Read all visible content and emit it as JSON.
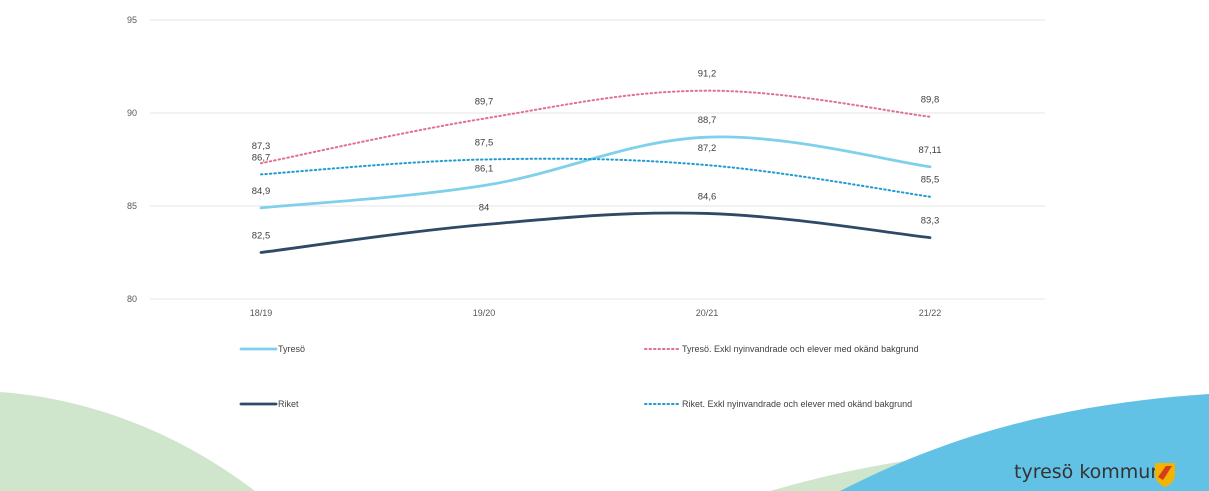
{
  "chart_data": {
    "type": "line",
    "title": "",
    "xlabel": "",
    "ylabel": "",
    "categories": [
      "18/19",
      "19/20",
      "20/21",
      "21/22"
    ],
    "ylim": [
      80,
      95
    ],
    "yticks": [
      80,
      85,
      90,
      95
    ],
    "grid": true,
    "legend_position": "bottom",
    "series": [
      {
        "name": "Tyresö",
        "values": [
          84.9,
          86.1,
          88.7,
          87.11
        ],
        "labels": [
          "84,9",
          "86,1",
          "88,7",
          "87,11"
        ],
        "color": "#7fd0ea",
        "style": "solid"
      },
      {
        "name": "Tyresö. Exkl nyinvandrade och elever med okänd bakgrund",
        "values": [
          87.3,
          89.7,
          91.2,
          89.8
        ],
        "labels": [
          "87,3",
          "89,7",
          "91,2",
          "89,8"
        ],
        "color": "#e0708e",
        "style": "dotted"
      },
      {
        "name": "Riket",
        "values": [
          82.5,
          84,
          84.6,
          83.3
        ],
        "labels": [
          "82,5",
          "84",
          "84,6",
          "83,3"
        ],
        "color": "#2e4a66",
        "style": "solid"
      },
      {
        "name": "Riket. Exkl nyinvandrade och elever med okänd bakgrund",
        "values": [
          86.7,
          87.5,
          87.2,
          85.5
        ],
        "labels": [
          "86,7",
          "87,5",
          "87,2",
          "85,5"
        ],
        "color": "#1f9bd1",
        "style": "dotted"
      }
    ]
  },
  "footer": {
    "logo_text": "tyresö kommun",
    "logo_icon": "coat-of-arms-icon"
  },
  "colors": {
    "wave_green": "#cfe6cc",
    "wave_blue": "#62c2e6",
    "gridline": "#e6e6e6"
  }
}
